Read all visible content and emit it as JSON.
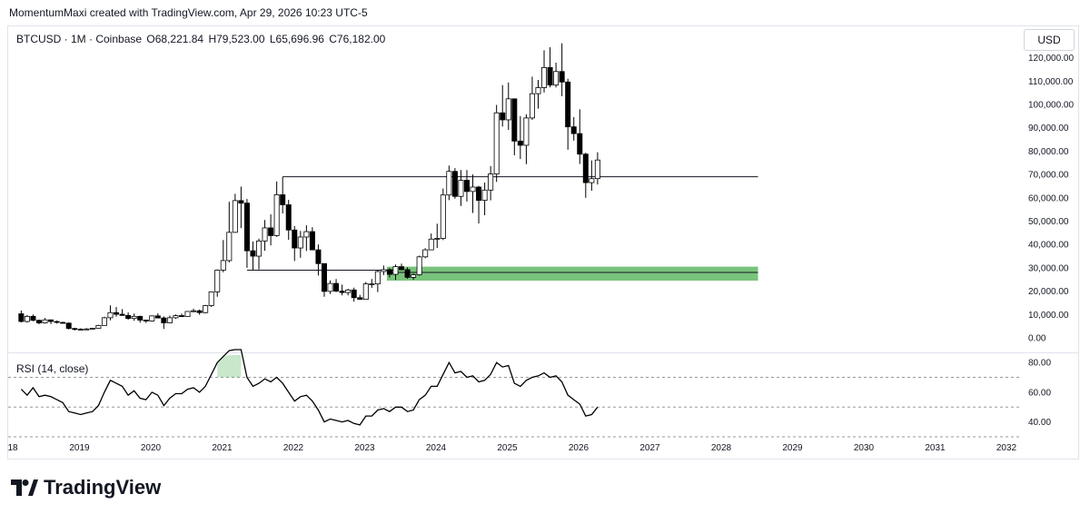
{
  "header": {
    "credit": "MomentumMaxi created with TradingView.com, Apr 29, 2026 10:23 UTC-5"
  },
  "legend": {
    "symbol": "BTCUSD · 1M · Coinbase",
    "open": "O68,221.84",
    "high": "H79,523.00",
    "low": "L65,696.96",
    "close": "C76,182.00"
  },
  "currency_button": "USD",
  "rsi_label": "RSI (14, close)",
  "footer": {
    "brand": "TradingView"
  },
  "colors": {
    "up": "#ffffff",
    "down": "#000000",
    "zone": "#4caf50",
    "line": "#131722",
    "grid_dash": "#9598a1"
  },
  "chart_data": [
    {
      "type": "candlestick",
      "title": "BTCUSD · 1M · Coinbase",
      "ylim": [
        0,
        120000
      ],
      "y_ticks": [
        "0.00",
        "10,000.00",
        "20,000.00",
        "30,000.00",
        "40,000.00",
        "50,000.00",
        "60,000.00",
        "70,000.00",
        "80,000.00",
        "90,000.00",
        "100,000.00",
        "110,000.00",
        "120,000.00"
      ],
      "x_ticks": [
        "18",
        "2019",
        "2020",
        "2021",
        "2022",
        "2023",
        "2024",
        "2025",
        "2026",
        "2027",
        "2028",
        "2029",
        "2030",
        "2031",
        "2032"
      ],
      "candles": [
        {
          "t": "2018-03",
          "o": 10300,
          "h": 11700,
          "l": 6600,
          "c": 7000
        },
        {
          "t": "2018-04",
          "o": 7000,
          "h": 9800,
          "l": 6500,
          "c": 9200
        },
        {
          "t": "2018-05",
          "o": 9200,
          "h": 10000,
          "l": 7100,
          "c": 7500
        },
        {
          "t": "2018-06",
          "o": 7500,
          "h": 7800,
          "l": 5800,
          "c": 6400
        },
        {
          "t": "2018-07",
          "o": 6400,
          "h": 8500,
          "l": 6100,
          "c": 7700
        },
        {
          "t": "2018-08",
          "o": 7700,
          "h": 7800,
          "l": 5900,
          "c": 7000
        },
        {
          "t": "2018-09",
          "o": 7000,
          "h": 7400,
          "l": 6100,
          "c": 6600
        },
        {
          "t": "2018-10",
          "o": 6600,
          "h": 6900,
          "l": 6200,
          "c": 6300
        },
        {
          "t": "2018-11",
          "o": 6300,
          "h": 6600,
          "l": 3600,
          "c": 4000
        },
        {
          "t": "2018-12",
          "o": 4000,
          "h": 4300,
          "l": 3100,
          "c": 3700
        },
        {
          "t": "2019-01",
          "o": 3700,
          "h": 4100,
          "l": 3400,
          "c": 3400
        },
        {
          "t": "2019-02",
          "o": 3400,
          "h": 4200,
          "l": 3400,
          "c": 3800
        },
        {
          "t": "2019-03",
          "o": 3800,
          "h": 4200,
          "l": 3700,
          "c": 4100
        },
        {
          "t": "2019-04",
          "o": 4100,
          "h": 5600,
          "l": 4100,
          "c": 5300
        },
        {
          "t": "2019-05",
          "o": 5300,
          "h": 9000,
          "l": 5300,
          "c": 8600
        },
        {
          "t": "2019-06",
          "o": 8600,
          "h": 13900,
          "l": 7500,
          "c": 10800
        },
        {
          "t": "2019-07",
          "o": 10800,
          "h": 13200,
          "l": 9100,
          "c": 10100
        },
        {
          "t": "2019-08",
          "o": 10100,
          "h": 12300,
          "l": 9500,
          "c": 9600
        },
        {
          "t": "2019-09",
          "o": 9600,
          "h": 10900,
          "l": 7700,
          "c": 8300
        },
        {
          "t": "2019-10",
          "o": 8300,
          "h": 10400,
          "l": 7300,
          "c": 9200
        },
        {
          "t": "2019-11",
          "o": 9200,
          "h": 9500,
          "l": 6500,
          "c": 7600
        },
        {
          "t": "2019-12",
          "o": 7600,
          "h": 7700,
          "l": 6400,
          "c": 7200
        },
        {
          "t": "2020-01",
          "o": 7200,
          "h": 9600,
          "l": 6900,
          "c": 9400
        },
        {
          "t": "2020-02",
          "o": 9400,
          "h": 10500,
          "l": 8500,
          "c": 8500
        },
        {
          "t": "2020-03",
          "o": 8500,
          "h": 9200,
          "l": 3800,
          "c": 6400
        },
        {
          "t": "2020-04",
          "o": 6400,
          "h": 9500,
          "l": 6200,
          "c": 8600
        },
        {
          "t": "2020-05",
          "o": 8600,
          "h": 10000,
          "l": 8100,
          "c": 9500
        },
        {
          "t": "2020-06",
          "o": 9500,
          "h": 10400,
          "l": 8900,
          "c": 9100
        },
        {
          "t": "2020-07",
          "o": 9100,
          "h": 11400,
          "l": 9000,
          "c": 11300
        },
        {
          "t": "2020-08",
          "o": 11300,
          "h": 12500,
          "l": 11000,
          "c": 11600
        },
        {
          "t": "2020-09",
          "o": 11600,
          "h": 12100,
          "l": 9900,
          "c": 10800
        },
        {
          "t": "2020-10",
          "o": 10800,
          "h": 14100,
          "l": 10500,
          "c": 13800
        },
        {
          "t": "2020-11",
          "o": 13800,
          "h": 19900,
          "l": 13200,
          "c": 19700
        },
        {
          "t": "2020-12",
          "o": 19700,
          "h": 29300,
          "l": 17600,
          "c": 29000
        },
        {
          "t": "2021-01",
          "o": 29000,
          "h": 41900,
          "l": 28100,
          "c": 33100
        },
        {
          "t": "2021-02",
          "o": 33100,
          "h": 58300,
          "l": 32300,
          "c": 45200
        },
        {
          "t": "2021-03",
          "o": 45200,
          "h": 61700,
          "l": 45000,
          "c": 58800
        },
        {
          "t": "2021-04",
          "o": 58800,
          "h": 64800,
          "l": 47000,
          "c": 57700
        },
        {
          "t": "2021-05",
          "o": 57700,
          "h": 59500,
          "l": 30000,
          "c": 37300
        },
        {
          "t": "2021-06",
          "o": 37300,
          "h": 41300,
          "l": 28800,
          "c": 35000
        },
        {
          "t": "2021-07",
          "o": 35000,
          "h": 42500,
          "l": 29300,
          "c": 41500
        },
        {
          "t": "2021-08",
          "o": 41500,
          "h": 50500,
          "l": 37300,
          "c": 47100
        },
        {
          "t": "2021-09",
          "o": 47100,
          "h": 52900,
          "l": 39600,
          "c": 43800
        },
        {
          "t": "2021-10",
          "o": 43800,
          "h": 67000,
          "l": 43300,
          "c": 61300
        },
        {
          "t": "2021-11",
          "o": 61300,
          "h": 69000,
          "l": 53300,
          "c": 57000
        },
        {
          "t": "2021-12",
          "o": 57000,
          "h": 59100,
          "l": 42000,
          "c": 46200
        },
        {
          "t": "2022-01",
          "o": 46200,
          "h": 47900,
          "l": 32900,
          "c": 38500
        },
        {
          "t": "2022-02",
          "o": 38500,
          "h": 45800,
          "l": 34300,
          "c": 43200
        },
        {
          "t": "2022-03",
          "o": 43200,
          "h": 48200,
          "l": 37200,
          "c": 45500
        },
        {
          "t": "2022-04",
          "o": 45500,
          "h": 47400,
          "l": 37700,
          "c": 37700
        },
        {
          "t": "2022-05",
          "o": 37700,
          "h": 40000,
          "l": 26700,
          "c": 31800
        },
        {
          "t": "2022-06",
          "o": 31800,
          "h": 31900,
          "l": 17600,
          "c": 19900
        },
        {
          "t": "2022-07",
          "o": 19900,
          "h": 24600,
          "l": 18800,
          "c": 23300
        },
        {
          "t": "2022-08",
          "o": 23300,
          "h": 25200,
          "l": 19600,
          "c": 20000
        },
        {
          "t": "2022-09",
          "o": 20000,
          "h": 22800,
          "l": 18200,
          "c": 19400
        },
        {
          "t": "2022-10",
          "o": 19400,
          "h": 21000,
          "l": 18200,
          "c": 20500
        },
        {
          "t": "2022-11",
          "o": 20500,
          "h": 21500,
          "l": 15500,
          "c": 17200
        },
        {
          "t": "2022-12",
          "o": 17200,
          "h": 18400,
          "l": 16300,
          "c": 16500
        },
        {
          "t": "2023-01",
          "o": 16500,
          "h": 23900,
          "l": 16500,
          "c": 23100
        },
        {
          "t": "2023-02",
          "o": 23100,
          "h": 25200,
          "l": 21400,
          "c": 23100
        },
        {
          "t": "2023-03",
          "o": 23100,
          "h": 29200,
          "l": 19600,
          "c": 28400
        },
        {
          "t": "2023-04",
          "o": 28400,
          "h": 31000,
          "l": 26900,
          "c": 29200
        },
        {
          "t": "2023-05",
          "o": 29200,
          "h": 29800,
          "l": 25800,
          "c": 27200
        },
        {
          "t": "2023-06",
          "o": 27200,
          "h": 31400,
          "l": 24800,
          "c": 30500
        },
        {
          "t": "2023-07",
          "o": 30500,
          "h": 31800,
          "l": 28900,
          "c": 29200
        },
        {
          "t": "2023-08",
          "o": 29200,
          "h": 30200,
          "l": 25300,
          "c": 25900
        },
        {
          "t": "2023-09",
          "o": 25900,
          "h": 27500,
          "l": 24900,
          "c": 27000
        },
        {
          "t": "2023-10",
          "o": 27000,
          "h": 35200,
          "l": 26600,
          "c": 34700
        },
        {
          "t": "2023-11",
          "o": 34700,
          "h": 38400,
          "l": 34100,
          "c": 37700
        },
        {
          "t": "2023-12",
          "o": 37700,
          "h": 44700,
          "l": 37600,
          "c": 42300
        },
        {
          "t": "2024-01",
          "o": 42300,
          "h": 48900,
          "l": 38500,
          "c": 42600
        },
        {
          "t": "2024-02",
          "o": 42600,
          "h": 64000,
          "l": 41900,
          "c": 61200
        },
        {
          "t": "2024-03",
          "o": 61200,
          "h": 73800,
          "l": 59000,
          "c": 71300
        },
        {
          "t": "2024-04",
          "o": 71300,
          "h": 72700,
          "l": 59600,
          "c": 60600
        },
        {
          "t": "2024-05",
          "o": 60600,
          "h": 71900,
          "l": 56500,
          "c": 67500
        },
        {
          "t": "2024-06",
          "o": 67500,
          "h": 71900,
          "l": 58400,
          "c": 62700
        },
        {
          "t": "2024-07",
          "o": 62700,
          "h": 70000,
          "l": 53500,
          "c": 64600
        },
        {
          "t": "2024-08",
          "o": 64600,
          "h": 65100,
          "l": 49000,
          "c": 58900
        },
        {
          "t": "2024-09",
          "o": 58900,
          "h": 66500,
          "l": 52500,
          "c": 63300
        },
        {
          "t": "2024-10",
          "o": 63300,
          "h": 73600,
          "l": 58900,
          "c": 70200
        },
        {
          "t": "2024-11",
          "o": 70200,
          "h": 99800,
          "l": 66800,
          "c": 96400
        },
        {
          "t": "2024-12",
          "o": 96400,
          "h": 108300,
          "l": 90500,
          "c": 93400
        },
        {
          "t": "2025-01",
          "o": 93400,
          "h": 109400,
          "l": 89100,
          "c": 102400
        },
        {
          "t": "2025-02",
          "o": 102400,
          "h": 102500,
          "l": 78200,
          "c": 84300
        },
        {
          "t": "2025-03",
          "o": 84300,
          "h": 95000,
          "l": 76600,
          "c": 82500
        },
        {
          "t": "2025-04",
          "o": 82500,
          "h": 95800,
          "l": 74400,
          "c": 94200
        },
        {
          "t": "2025-05",
          "o": 94200,
          "h": 111900,
          "l": 93400,
          "c": 104600
        },
        {
          "t": "2025-06",
          "o": 104600,
          "h": 110500,
          "l": 98200,
          "c": 107200
        },
        {
          "t": "2025-07",
          "o": 107200,
          "h": 123200,
          "l": 105100,
          "c": 115800
        },
        {
          "t": "2025-08",
          "o": 115800,
          "h": 124500,
          "l": 107300,
          "c": 108300
        },
        {
          "t": "2025-09",
          "o": 108300,
          "h": 117900,
          "l": 107300,
          "c": 114100
        },
        {
          "t": "2025-10",
          "o": 114100,
          "h": 126200,
          "l": 103500,
          "c": 109600
        },
        {
          "t": "2025-11",
          "o": 109600,
          "h": 111000,
          "l": 80600,
          "c": 90400
        },
        {
          "t": "2025-12",
          "o": 90400,
          "h": 94600,
          "l": 84500,
          "c": 87500
        },
        {
          "t": "2026-01",
          "o": 87500,
          "h": 97900,
          "l": 74500,
          "c": 78700
        },
        {
          "t": "2026-02",
          "o": 78700,
          "h": 79300,
          "l": 60000,
          "c": 66500
        },
        {
          "t": "2026-03",
          "o": 66500,
          "h": 76000,
          "l": 63000,
          "c": 68200
        },
        {
          "t": "2026-04",
          "o": 68221.84,
          "h": 79523.0,
          "l": 65696.96,
          "c": 76182.0
        }
      ],
      "annotations": [
        {
          "type": "hline",
          "y": 69000,
          "from": "2021-11",
          "to": "2028-07"
        },
        {
          "type": "hline",
          "y": 29000,
          "from": "2021-05",
          "to": "2023-06"
        },
        {
          "type": "zone",
          "y_low": 24500,
          "y_high": 30500,
          "from": "2023-05",
          "to": "2028-07",
          "color": "#4caf50"
        },
        {
          "type": "hline",
          "y": 28000,
          "from": "2023-05",
          "to": "2028-07"
        }
      ]
    },
    {
      "type": "line",
      "title": "RSI (14, close)",
      "ylim": [
        30,
        85
      ],
      "y_ticks": [
        "40.00",
        "60.00",
        "80.00"
      ],
      "guides": [
        30,
        50,
        70
      ],
      "series": [
        {
          "x": [
            "2018-03",
            "2018-04",
            "2018-05",
            "2018-06",
            "2018-07",
            "2018-08",
            "2018-09",
            "2018-10",
            "2018-11",
            "2018-12",
            "2019-01",
            "2019-02",
            "2019-03",
            "2019-04",
            "2019-05",
            "2019-06",
            "2019-07",
            "2019-08",
            "2019-09",
            "2019-10",
            "2019-11",
            "2019-12",
            "2020-01",
            "2020-02",
            "2020-03",
            "2020-04",
            "2020-05",
            "2020-06",
            "2020-07",
            "2020-08",
            "2020-09",
            "2020-10",
            "2020-11",
            "2020-12",
            "2021-01",
            "2021-02",
            "2021-03",
            "2021-04",
            "2021-05",
            "2021-06",
            "2021-07",
            "2021-08",
            "2021-09",
            "2021-10",
            "2021-11",
            "2021-12",
            "2022-01",
            "2022-02",
            "2022-03",
            "2022-04",
            "2022-05",
            "2022-06",
            "2022-07",
            "2022-08",
            "2022-09",
            "2022-10",
            "2022-11",
            "2022-12",
            "2023-01",
            "2023-02",
            "2023-03",
            "2023-04",
            "2023-05",
            "2023-06",
            "2023-07",
            "2023-08",
            "2023-09",
            "2023-10",
            "2023-11",
            "2023-12",
            "2024-01",
            "2024-02",
            "2024-03",
            "2024-04",
            "2024-05",
            "2024-06",
            "2024-07",
            "2024-08",
            "2024-09",
            "2024-10",
            "2024-11",
            "2024-12",
            "2025-01",
            "2025-02",
            "2025-03",
            "2025-04",
            "2025-05",
            "2025-06",
            "2025-07",
            "2025-08",
            "2025-09",
            "2025-10",
            "2025-11",
            "2025-12",
            "2026-01",
            "2026-02",
            "2026-03",
            "2026-04"
          ],
          "values": [
            62,
            58,
            63,
            57,
            58,
            57,
            55,
            53,
            47,
            46,
            45,
            46,
            47,
            51,
            60,
            68,
            66,
            64,
            58,
            61,
            56,
            55,
            60,
            58,
            51,
            56,
            59,
            59,
            62,
            63,
            60,
            64,
            72,
            80,
            84,
            88,
            90,
            92,
            70,
            64,
            66,
            69,
            67,
            70,
            66,
            60,
            54,
            57,
            58,
            54,
            48,
            40,
            42,
            41,
            40,
            41,
            39,
            38,
            44,
            44,
            48,
            49,
            47,
            50,
            50,
            47,
            48,
            55,
            58,
            64,
            64,
            72,
            80,
            73,
            74,
            70,
            71,
            67,
            68,
            72,
            80,
            77,
            78,
            66,
            64,
            68,
            70,
            71,
            73,
            70,
            71,
            67,
            58,
            55,
            52,
            44,
            45,
            50
          ]
        }
      ]
    }
  ]
}
